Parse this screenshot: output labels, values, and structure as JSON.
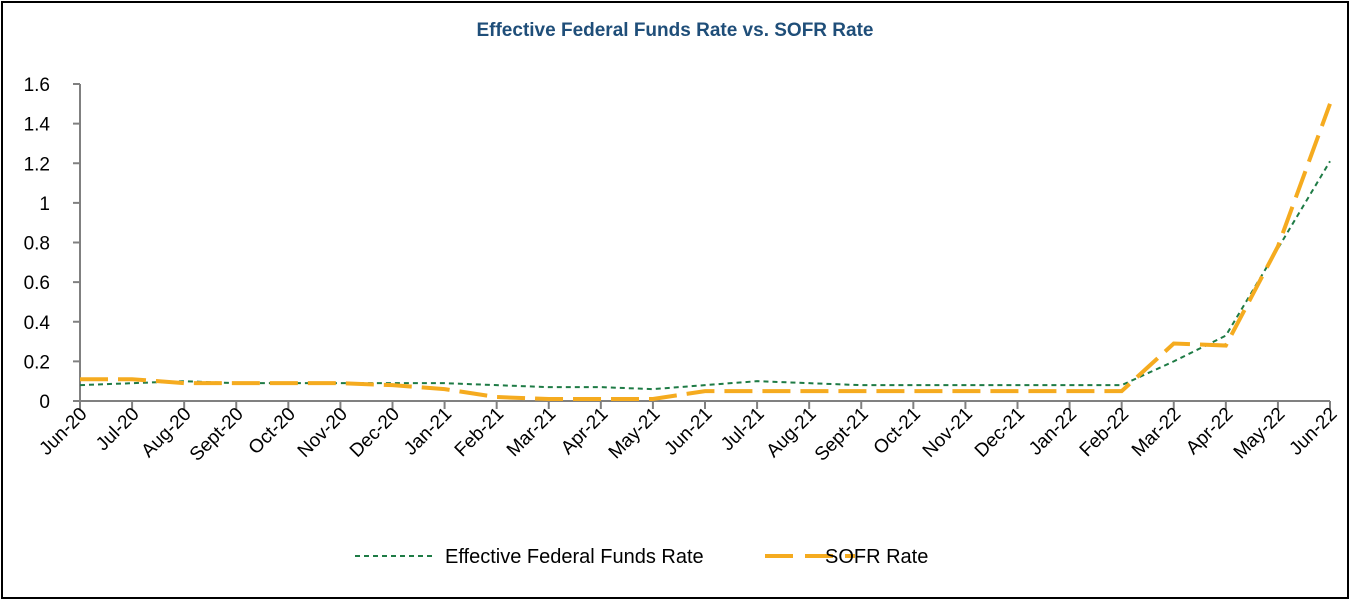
{
  "chart_data": {
    "type": "line",
    "title": "Effective Federal Funds Rate vs. SOFR Rate",
    "xlabel": "",
    "ylabel": "",
    "ylim": [
      0,
      1.6
    ],
    "yticks": [
      "0",
      "0.2",
      "0.4",
      "0.6",
      "0.8",
      "1",
      "1.2",
      "1.4",
      "1.6"
    ],
    "categories": [
      "Jun-20",
      "Jul-20",
      "Aug-20",
      "Sept-20",
      "Oct-20",
      "Nov-20",
      "Dec-20",
      "Jan-21",
      "Feb-21",
      "Mar-21",
      "Apr-21",
      "May-21",
      "Jun-21",
      "Jul-21",
      "Aug-21",
      "Sept-21",
      "Oct-21",
      "Nov-21",
      "Dec-21",
      "Jan-22",
      "Feb-22",
      "Mar-22",
      "Apr-22",
      "May-22",
      "Jun-22"
    ],
    "grid": false,
    "legend_position": "bottom",
    "series": [
      {
        "name": "Effective Federal Funds Rate",
        "color": "#1e7b45",
        "style": "dotted",
        "values": [
          0.08,
          0.09,
          0.1,
          0.09,
          0.09,
          0.09,
          0.09,
          0.09,
          0.08,
          0.07,
          0.07,
          0.06,
          0.08,
          0.1,
          0.09,
          0.08,
          0.08,
          0.08,
          0.08,
          0.08,
          0.08,
          0.2,
          0.33,
          0.77,
          1.21
        ]
      },
      {
        "name": "SOFR Rate",
        "color": "#f5ab1f",
        "style": "dashed",
        "values": [
          0.11,
          0.11,
          0.09,
          0.09,
          0.09,
          0.09,
          0.08,
          0.06,
          0.02,
          0.01,
          0.01,
          0.01,
          0.05,
          0.05,
          0.05,
          0.05,
          0.05,
          0.05,
          0.05,
          0.05,
          0.05,
          0.29,
          0.28,
          0.78,
          1.5
        ]
      }
    ]
  }
}
